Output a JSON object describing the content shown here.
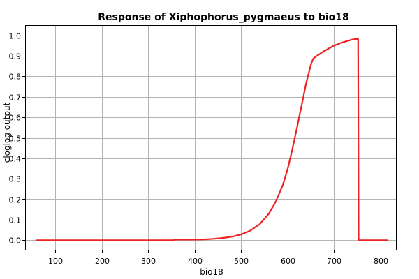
{
  "chart_data": {
    "type": "line",
    "title": "Response of Xiphophorus_pygmaeus to bio18",
    "xlabel": "bio18",
    "ylabel": "cloglog output",
    "xlim": [
      35,
      835
    ],
    "ylim": [
      -0.05,
      1.05
    ],
    "grid": true,
    "x_ticks": [
      100,
      200,
      300,
      400,
      500,
      600,
      700,
      800
    ],
    "y_ticks": [
      0.0,
      0.1,
      0.2,
      0.3,
      0.4,
      0.5,
      0.6,
      0.7,
      0.8,
      0.9,
      1.0
    ],
    "x_tick_labels": [
      "100",
      "200",
      "300",
      "400",
      "500",
      "600",
      "700",
      "800"
    ],
    "y_tick_labels": [
      "0.0",
      "0.1",
      "0.2",
      "0.3",
      "0.4",
      "0.5",
      "0.6",
      "0.7",
      "0.8",
      "0.9",
      "1.0"
    ],
    "series": [
      {
        "color": "#ee2222",
        "x": [
          60,
          100,
          200,
          300,
          355,
          356,
          400,
          420,
          440,
          460,
          480,
          500,
          520,
          540,
          560,
          575,
          590,
          600,
          610,
          620,
          630,
          640,
          650,
          655,
          660,
          680,
          700,
          720,
          740,
          752,
          753,
          780,
          815
        ],
        "y": [
          0.0,
          0.0,
          0.0,
          0.0,
          0.0,
          0.003,
          0.003,
          0.004,
          0.007,
          0.011,
          0.017,
          0.028,
          0.047,
          0.078,
          0.13,
          0.19,
          0.27,
          0.345,
          0.44,
          0.545,
          0.655,
          0.765,
          0.855,
          0.885,
          0.895,
          0.925,
          0.95,
          0.967,
          0.98,
          0.983,
          0.0,
          0.0,
          0.0
        ]
      }
    ]
  }
}
